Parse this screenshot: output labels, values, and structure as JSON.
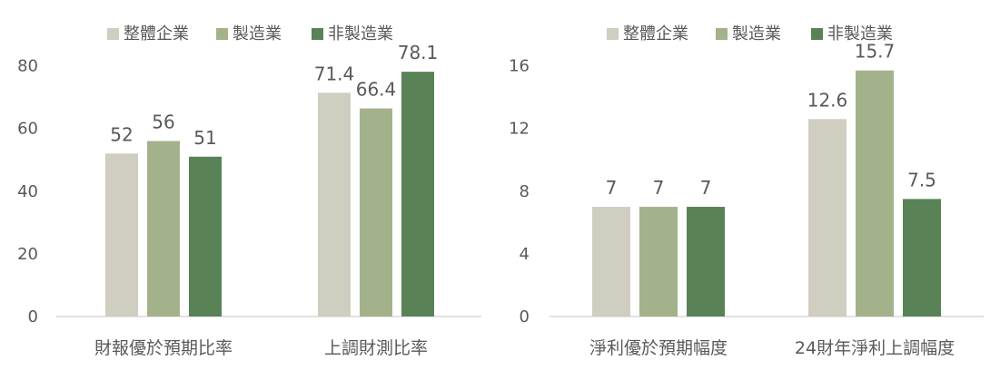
{
  "colors": {
    "整體企業": "#d0cdc1",
    "製造業": "#a3b28a",
    "非製造業": "#5a8257",
    "axis": "#d9d9d9",
    "text": "#595959"
  },
  "chart_data": [
    {
      "type": "bar",
      "categories": [
        "財報優於預期比率",
        "上調財測比率"
      ],
      "series": [
        {
          "name": "整體企業",
          "values": [
            52,
            71.4
          ]
        },
        {
          "name": "製造業",
          "values": [
            56,
            66.4
          ]
        },
        {
          "name": "非製造業",
          "values": [
            51,
            78.1
          ]
        }
      ],
      "data_labels": [
        [
          "52",
          "71.4"
        ],
        [
          "56",
          "66.4"
        ],
        [
          "51",
          "78.1"
        ]
      ],
      "yticks": [
        0,
        20,
        40,
        60,
        80
      ],
      "ylim": [
        0,
        90
      ],
      "legend_position": "top-center",
      "grid": false
    },
    {
      "type": "bar",
      "categories": [
        "淨利優於預期幅度",
        "24財年淨利上調幅度"
      ],
      "series": [
        {
          "name": "整體企業",
          "values": [
            7,
            12.6
          ]
        },
        {
          "name": "製造業",
          "values": [
            7,
            15.7
          ]
        },
        {
          "name": "非製造業",
          "values": [
            7,
            7.5
          ]
        }
      ],
      "data_labels": [
        [
          "7",
          "12.6"
        ],
        [
          "7",
          "15.7"
        ],
        [
          "7",
          "7.5"
        ]
      ],
      "yticks": [
        0,
        4,
        8,
        12,
        16
      ],
      "ylim": [
        0,
        18
      ],
      "legend_position": "top-center",
      "grid": false
    }
  ]
}
